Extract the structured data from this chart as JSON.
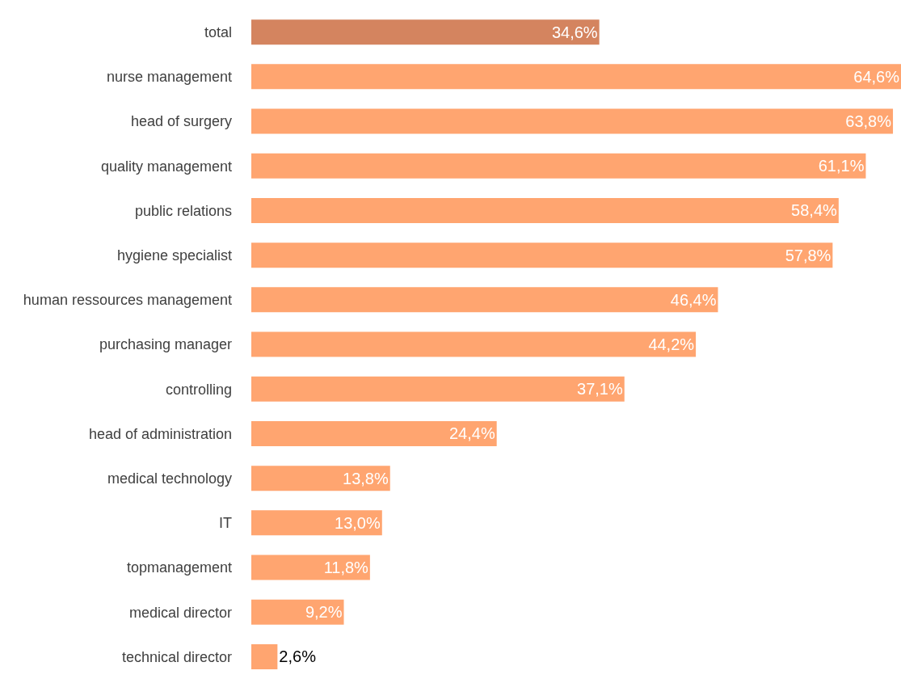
{
  "chart_data": {
    "type": "bar",
    "orientation": "horizontal",
    "categories": [
      "total",
      "nurse management",
      "head of surgery",
      "quality management",
      "public relations",
      "hygiene specialist",
      "human ressources management",
      "purchasing manager",
      "controlling",
      "head of administration",
      "medical technology",
      "IT",
      "topmanagement",
      "medical director",
      "technical director"
    ],
    "values": [
      34.6,
      64.6,
      63.8,
      61.1,
      58.4,
      57.8,
      46.4,
      44.2,
      37.1,
      24.4,
      13.8,
      13.0,
      11.8,
      9.2,
      2.6
    ],
    "value_labels": [
      "34,6%",
      "64,6%",
      "63,8%",
      "61,1%",
      "58,4%",
      "57,8%",
      "46,4%",
      "44,2%",
      "37,1%",
      "24,4%",
      "13,8%",
      "13,0%",
      "11,8%",
      "9,2%",
      "2,6%"
    ],
    "colors": [
      "#d4845f",
      "#ffa570",
      "#ffa570",
      "#ffa570",
      "#ffa570",
      "#ffa570",
      "#ffa570",
      "#ffa570",
      "#ffa570",
      "#ffa570",
      "#ffa570",
      "#ffa570",
      "#ffa570",
      "#ffa570",
      "#ffa570"
    ]
  }
}
